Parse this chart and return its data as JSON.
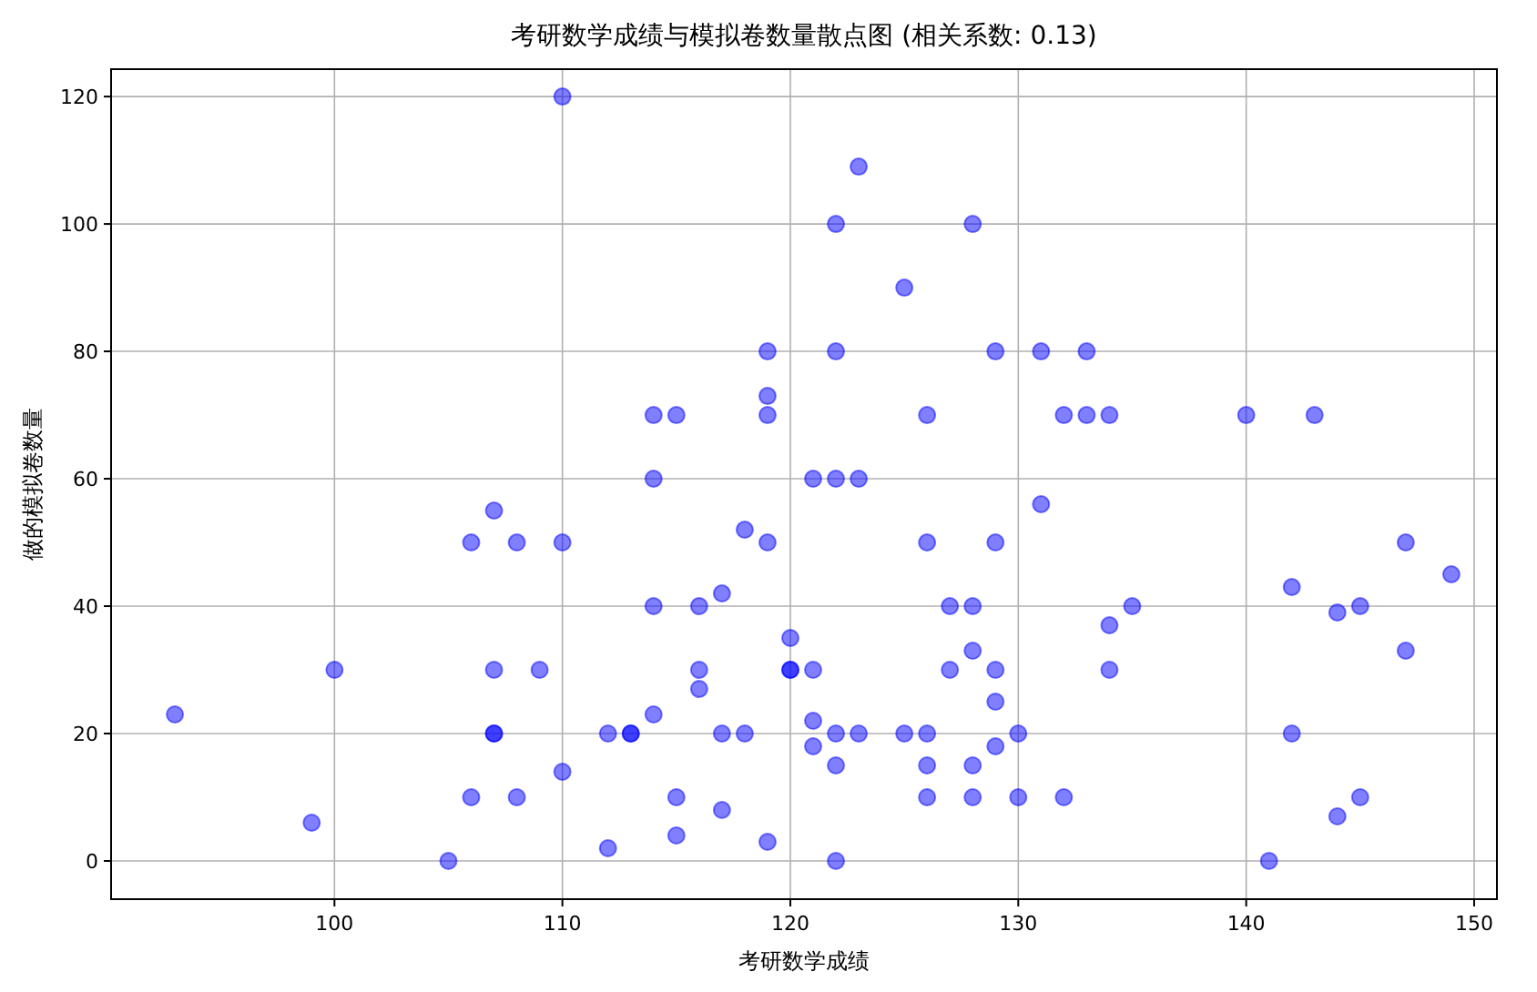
{
  "chart_data": {
    "type": "scatter",
    "title": "考研数学成绩与模拟卷数量散点图 (相关系数: 0.13)",
    "xlabel": "考研数学成绩",
    "ylabel": "做的模拟卷数量",
    "xlim": [
      90.2,
      151
    ],
    "ylim": [
      -6,
      124.3
    ],
    "xticks": [
      100,
      110,
      120,
      130,
      140,
      150
    ],
    "yticks": [
      0,
      20,
      40,
      60,
      80,
      100,
      120
    ],
    "grid": true,
    "marker": "circle",
    "series": [
      {
        "color": "#0000ff",
        "x": [
          93,
          99,
          100,
          105,
          106,
          106,
          107,
          107,
          107,
          107,
          108,
          108,
          109,
          110,
          110,
          110,
          112,
          112,
          113,
          113,
          114,
          114,
          114,
          114,
          115,
          115,
          115,
          116,
          116,
          116,
          117,
          117,
          117,
          118,
          118,
          119,
          119,
          119,
          119,
          119,
          120,
          120,
          120,
          121,
          121,
          121,
          121,
          122,
          122,
          122,
          122,
          122,
          122,
          123,
          123,
          123,
          125,
          125,
          126,
          126,
          126,
          126,
          126,
          127,
          127,
          128,
          128,
          128,
          128,
          128,
          129,
          129,
          129,
          129,
          129,
          130,
          130,
          131,
          131,
          132,
          132,
          133,
          133,
          134,
          134,
          134,
          135,
          140,
          141,
          142,
          142,
          143,
          144,
          144,
          145,
          145,
          147,
          147,
          149
        ],
        "values": [
          23,
          6,
          30,
          0,
          50,
          10,
          55,
          30,
          20,
          20,
          50,
          10,
          30,
          120,
          50,
          14,
          20,
          2,
          20,
          20,
          70,
          60,
          40,
          23,
          70,
          10,
          4,
          40,
          30,
          27,
          42,
          20,
          8,
          52,
          20,
          80,
          73,
          70,
          50,
          3,
          35,
          30,
          30,
          60,
          30,
          22,
          18,
          100,
          80,
          60,
          20,
          15,
          0,
          109,
          60,
          20,
          90,
          20,
          70,
          50,
          20,
          15,
          10,
          40,
          30,
          100,
          40,
          33,
          15,
          10,
          80,
          50,
          30,
          25,
          18,
          20,
          10,
          80,
          56,
          70,
          10,
          80,
          70,
          70,
          37,
          30,
          40,
          70,
          0,
          43,
          20,
          70,
          39,
          7,
          40,
          10,
          50,
          33,
          45
        ]
      }
    ]
  }
}
